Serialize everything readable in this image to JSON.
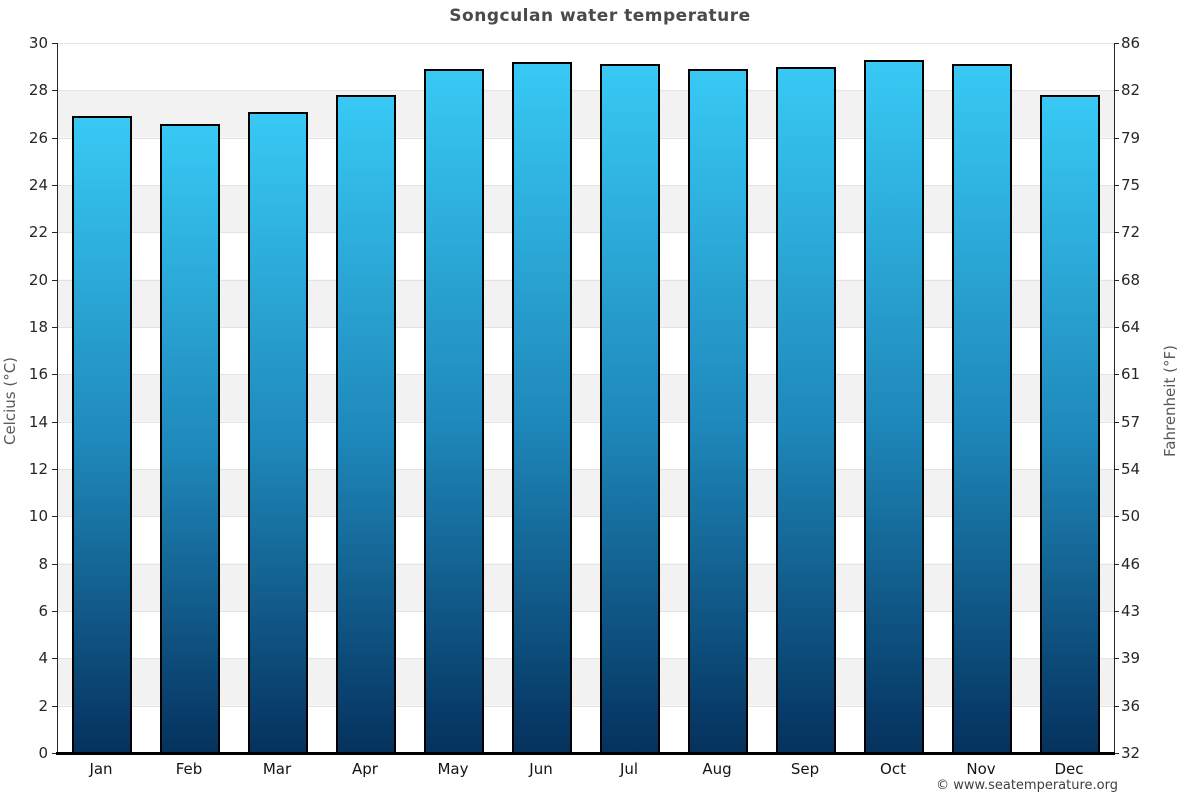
{
  "chart_data": {
    "type": "bar",
    "title": "Songculan water temperature",
    "categories": [
      "Jan",
      "Feb",
      "Mar",
      "Apr",
      "May",
      "Jun",
      "Jul",
      "Aug",
      "Sep",
      "Oct",
      "Nov",
      "Dec"
    ],
    "values": [
      26.9,
      26.6,
      27.1,
      27.8,
      28.9,
      29.2,
      29.1,
      28.9,
      29.0,
      29.3,
      29.1,
      27.8
    ],
    "unit": "°C",
    "ylabel_left": "Celcius (°C)",
    "ylabel_right": "Fahrenheit (°F)",
    "xlabel": "",
    "ylim_celsius": [
      0,
      30
    ],
    "yticks_celsius": [
      0,
      2,
      4,
      6,
      8,
      10,
      12,
      14,
      16,
      18,
      20,
      22,
      24,
      26,
      28,
      30
    ],
    "yticks_fahrenheit_labels": [
      "32",
      "36",
      "39",
      "43",
      "46",
      "50",
      "54",
      "57",
      "61",
      "64",
      "68",
      "72",
      "75",
      "79",
      "82",
      "86"
    ],
    "legend": "none",
    "grid": "horizontal alternating bands, light gray lines every 2°C",
    "colors": {
      "bar_gradient_top": "#38c9f4",
      "bar_gradient_mid": "#1e88ba",
      "bar_gradient_bottom": "#05315d",
      "bar_border": "#000000",
      "band_fill": "#f2f2f2",
      "gridline": "#e3e3e3",
      "axis_line": "#000000",
      "title_color": "#4a4a4a"
    },
    "footer": "© www.seatemperature.org"
  }
}
